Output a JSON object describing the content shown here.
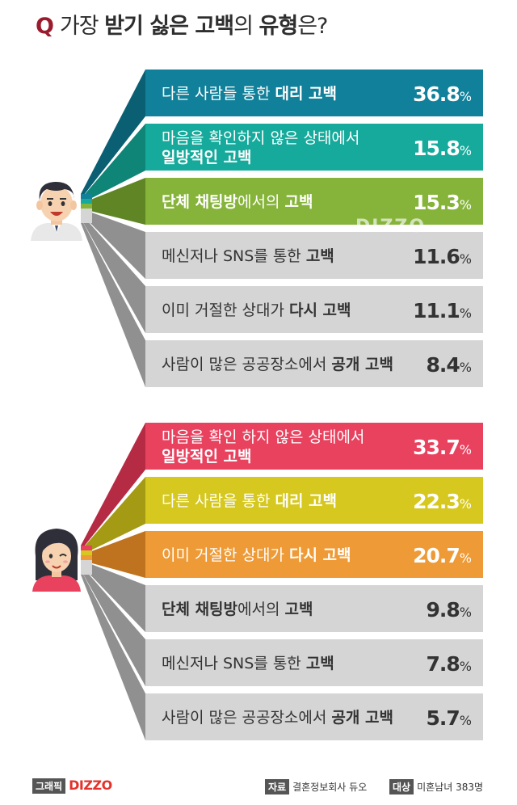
{
  "title": {
    "q": "Q",
    "pre": "가장 ",
    "b1": "받기 싫은 고백",
    "mid": "의 ",
    "b2": "유형",
    "post": "은?"
  },
  "watermark": "DIZZO",
  "colors": {
    "male": [
      "#11809a",
      "#15aa9b",
      "#86b43a",
      "#d5d5d5",
      "#d5d5d5",
      "#d5d5d5"
    ],
    "male_dark": [
      "#0b5f73",
      "#0e8577",
      "#5f8524",
      "#909090",
      "#909090",
      "#909090"
    ],
    "female": [
      "#e8425f",
      "#d6c81e",
      "#ee9a36",
      "#d5d5d5",
      "#d5d5d5",
      "#d5d5d5"
    ],
    "female_dark": [
      "#b52b44",
      "#a59a13",
      "#c0731e",
      "#909090",
      "#909090",
      "#909090"
    ]
  },
  "chart_data": [
    {
      "type": "bar",
      "group": "male",
      "categories": [
        [
          {
            "t": "다른 사람들 통한 ",
            "b": false
          },
          {
            "t": "대리 고백",
            "b": true
          }
        ],
        [
          {
            "t": "마음을 확인하지 않은 상태에서",
            "b": false
          },
          {
            "t": "\n",
            "b": false
          },
          {
            "t": "일방적인 고백",
            "b": true
          }
        ],
        [
          {
            "t": "단체 채팅방",
            "b": true
          },
          {
            "t": "에서의 ",
            "b": false
          },
          {
            "t": "고백",
            "b": true
          }
        ],
        [
          {
            "t": "메신저나 SNS를 통한 ",
            "b": false
          },
          {
            "t": "고백",
            "b": true
          }
        ],
        [
          {
            "t": "이미 거절한 상대가 ",
            "b": false
          },
          {
            "t": "다시 고백",
            "b": true
          }
        ],
        [
          {
            "t": "사람이 많은 공공장소에서 ",
            "b": false
          },
          {
            "t": "공개 고백",
            "b": true
          }
        ]
      ],
      "values": [
        36.8,
        15.8,
        15.3,
        11.6,
        11.1,
        8.4
      ],
      "unit": "%"
    },
    {
      "type": "bar",
      "group": "female",
      "categories": [
        [
          {
            "t": "마음을 확인 하지 않은 상태에서",
            "b": false
          },
          {
            "t": "\n",
            "b": false
          },
          {
            "t": "일방적인 고백",
            "b": true
          }
        ],
        [
          {
            "t": "다른 사람을 통한 ",
            "b": false
          },
          {
            "t": "대리 고백",
            "b": true
          }
        ],
        [
          {
            "t": "이미 거절한 상대가 ",
            "b": false
          },
          {
            "t": "다시 고백",
            "b": true
          }
        ],
        [
          {
            "t": "단체 채팅방",
            "b": true
          },
          {
            "t": "에서의 ",
            "b": false
          },
          {
            "t": "고백",
            "b": true
          }
        ],
        [
          {
            "t": "메신저나 SNS를 통한 ",
            "b": false
          },
          {
            "t": "고백",
            "b": true
          }
        ],
        [
          {
            "t": "사람이 많은 공공장소에서 ",
            "b": false
          },
          {
            "t": "공개 고백",
            "b": true
          }
        ]
      ],
      "values": [
        33.7,
        22.3,
        20.7,
        9.8,
        7.8,
        5.7
      ],
      "unit": "%"
    }
  ],
  "footer": {
    "graphic_tag": "그래픽",
    "logo": "DIZZO",
    "source_tag": "자료",
    "source": "결혼정보회사 듀오",
    "target_tag": "대상",
    "target": "미혼남녀 383명"
  }
}
